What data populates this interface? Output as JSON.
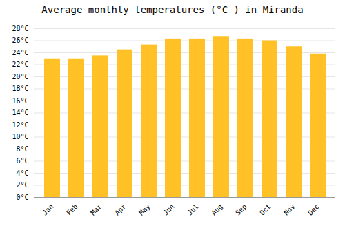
{
  "chart_data": {
    "type": "bar",
    "title": "Average monthly temperatures (°C ) in Miranda",
    "categories": [
      "Jan",
      "Feb",
      "Mar",
      "Apr",
      "May",
      "Jun",
      "Jul",
      "Aug",
      "Sep",
      "Oct",
      "Nov",
      "Dec"
    ],
    "values": [
      23.0,
      23.0,
      23.5,
      24.5,
      25.3,
      26.3,
      26.3,
      26.6,
      26.3,
      26.0,
      25.0,
      23.8
    ],
    "color": "#FFC125",
    "ylim": [
      0,
      28
    ],
    "yticks": [
      {
        "value": 0,
        "label": "0°C"
      },
      {
        "value": 2,
        "label": "2°C"
      },
      {
        "value": 4,
        "label": "4°C"
      },
      {
        "value": 6,
        "label": "6°C"
      },
      {
        "value": 8,
        "label": "8°C"
      },
      {
        "value": 10,
        "label": "10°C"
      },
      {
        "value": 12,
        "label": "12°C"
      },
      {
        "value": 14,
        "label": "14°C"
      },
      {
        "value": 16,
        "label": "16°C"
      },
      {
        "value": 18,
        "label": "18°C"
      },
      {
        "value": 20,
        "label": "20°C"
      },
      {
        "value": 22,
        "label": "22°C"
      },
      {
        "value": 24,
        "label": "24°C"
      },
      {
        "value": 26,
        "label": "26°C"
      },
      {
        "value": 28,
        "label": "28°C"
      }
    ],
    "grid": true
  }
}
